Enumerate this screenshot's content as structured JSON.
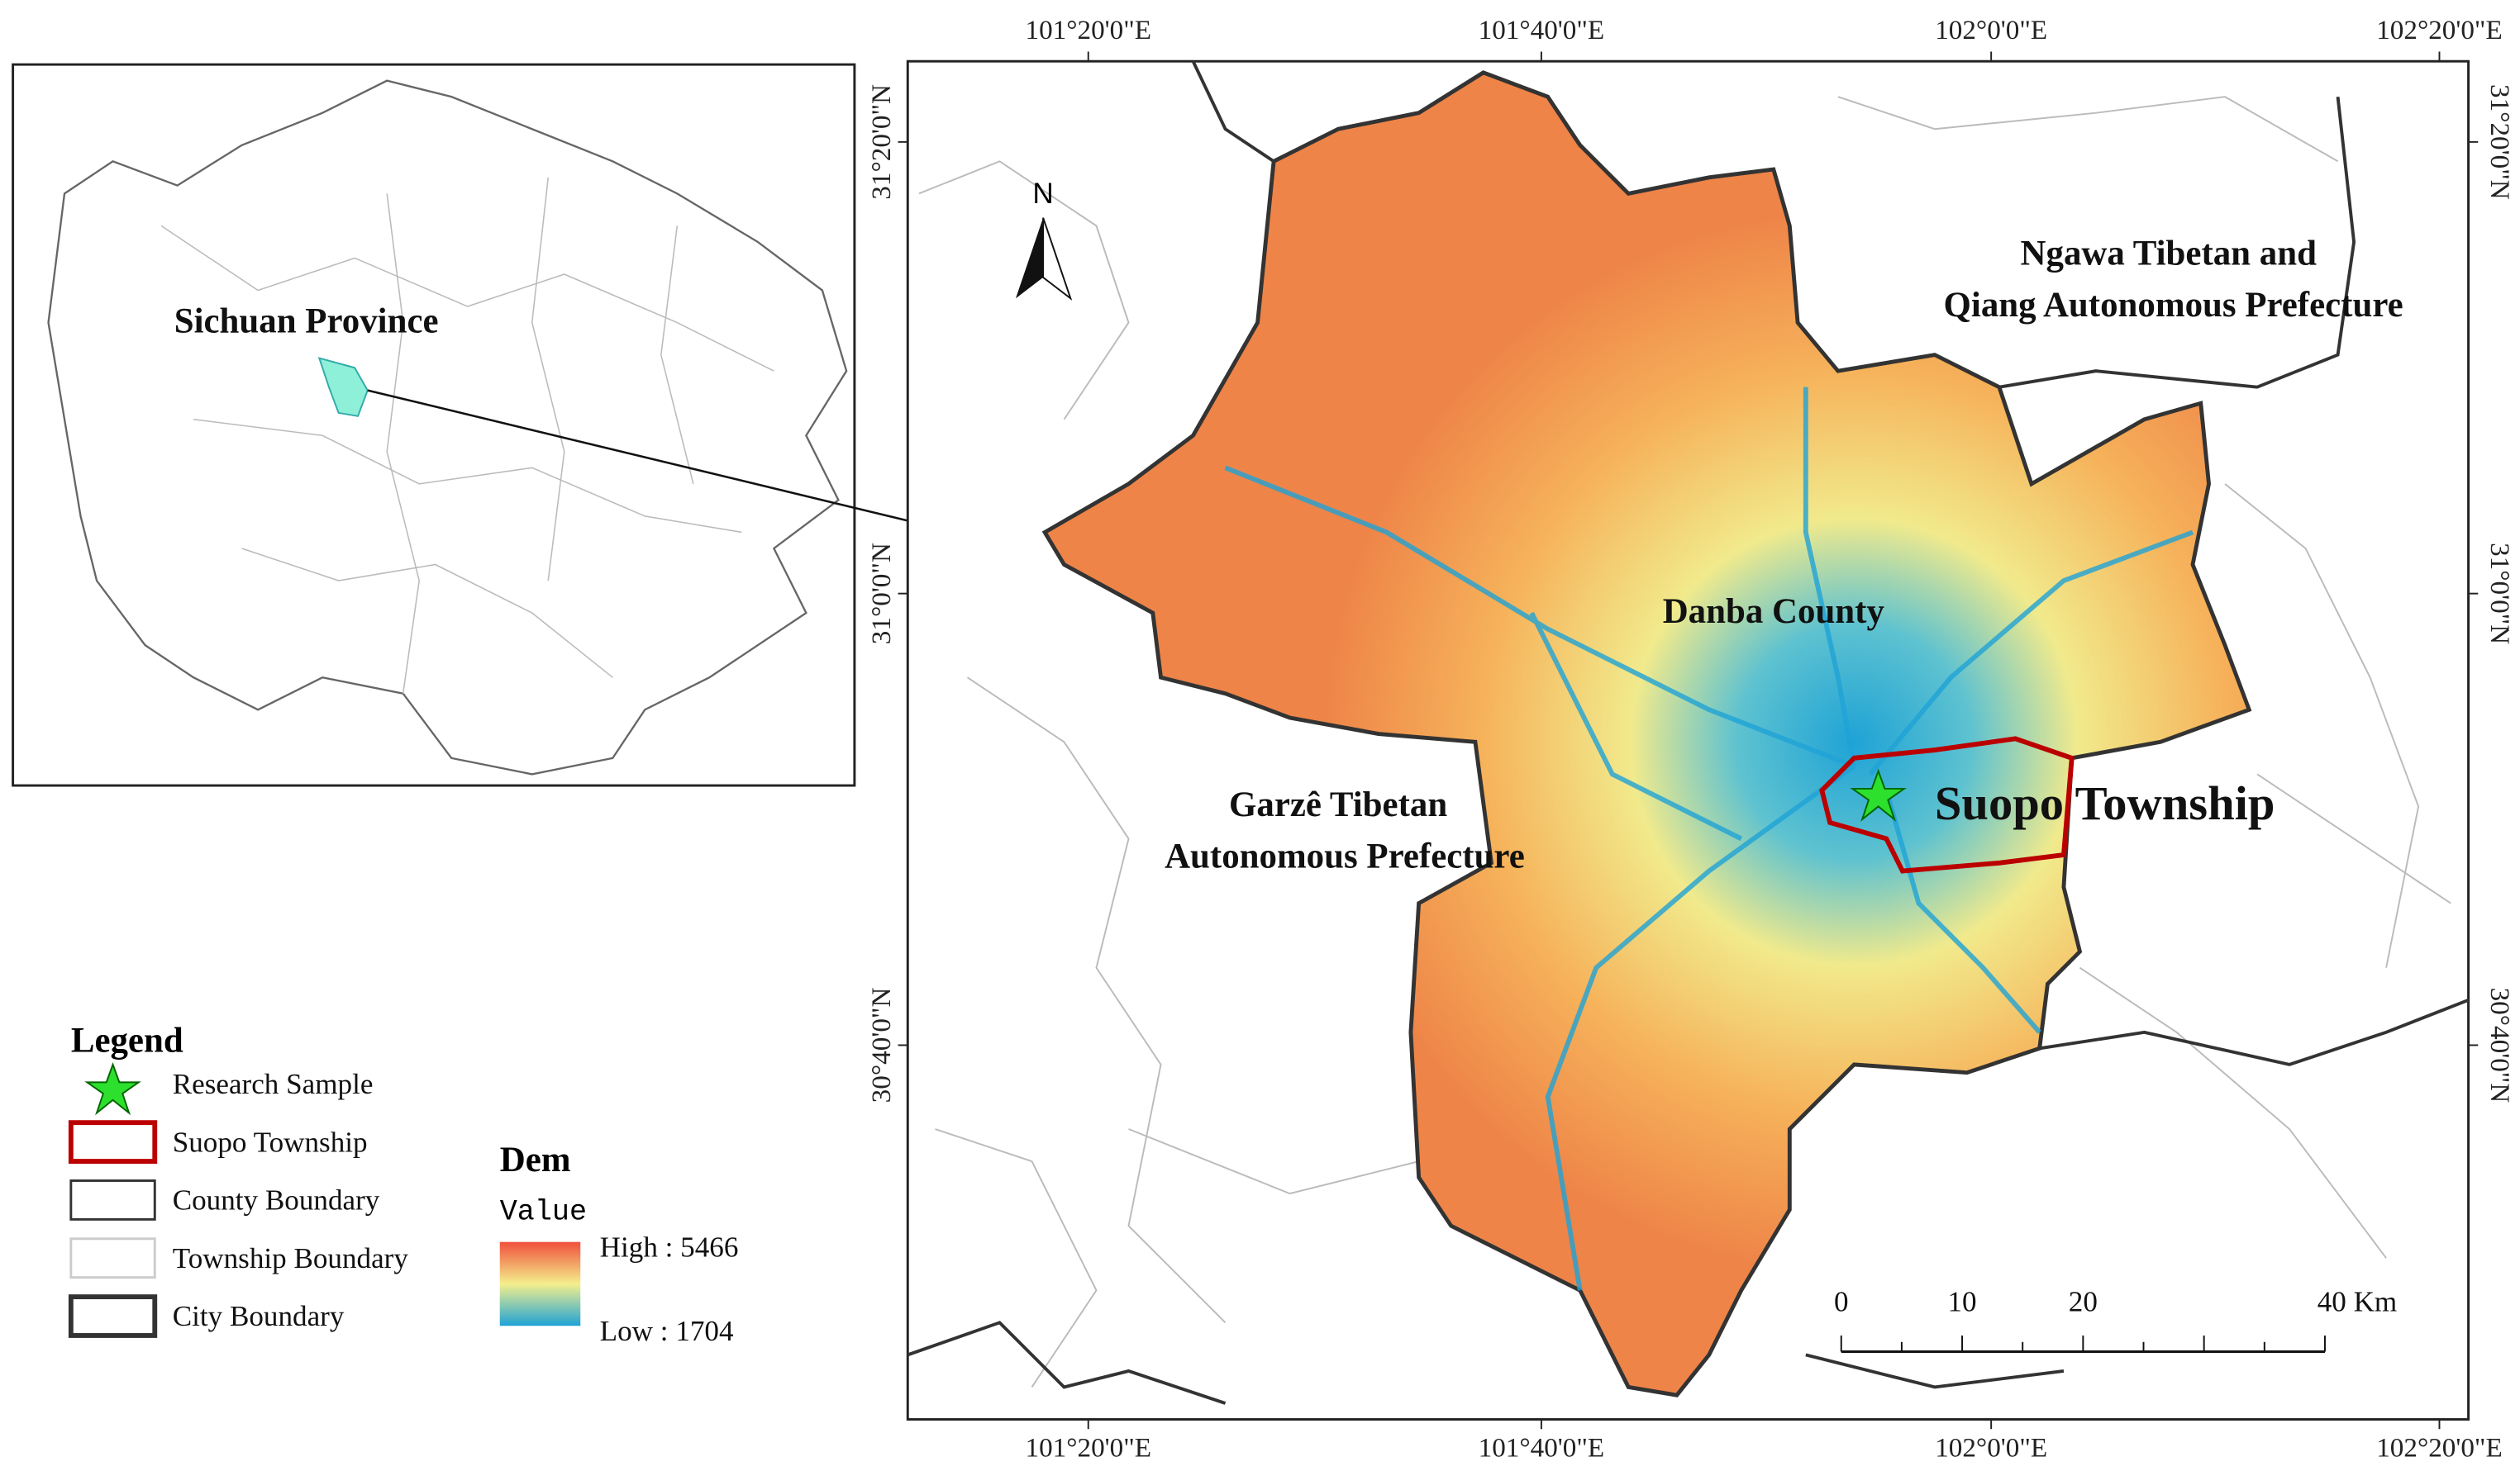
{
  "inset": {
    "label": "Sichuan Province"
  },
  "map": {
    "top_ticks": [
      "101°20'0\"E",
      "101°40'0\"E",
      "102°0'0\"E",
      "102°20'0\"E"
    ],
    "bottom_ticks": [
      "101°20'0\"E",
      "101°40'0\"E",
      "102°0'0\"E",
      "102°20'0\"E"
    ],
    "left_ticks": [
      "31°20'0\"N",
      "31°0'0\"N",
      "30°40'0\"N"
    ],
    "right_ticks": [
      "31°20'0\"N",
      "31°0'0\"N",
      "30°40'0\"N"
    ],
    "north": "N",
    "ngawa": [
      "Ngawa Tibetan and",
      "Qiang Autonomous Prefecture"
    ],
    "danba": "Danba County",
    "garze": [
      "Garzê Tibetan",
      "Autonomous Prefecture"
    ],
    "suopo": "Suopo Township"
  },
  "legend": {
    "title": "Legend",
    "items": [
      "Research Sample",
      "Suopo Township",
      "County Boundary",
      "Township Boundary",
      "City Boundary"
    ]
  },
  "dem": {
    "title": "Dem",
    "subtitle": "Value",
    "high": "High : 5466",
    "low": "Low : 1704"
  },
  "scale_bar": {
    "labels": [
      "0",
      "10",
      "20",
      "40 Km"
    ]
  }
}
